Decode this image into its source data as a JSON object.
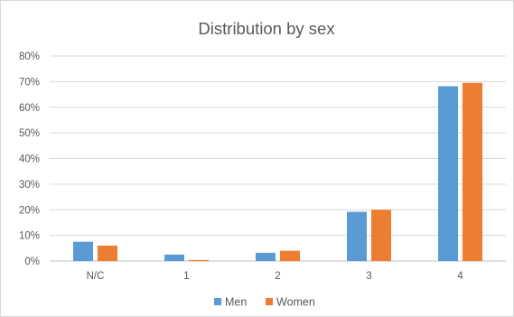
{
  "chart_data": {
    "type": "bar",
    "title": "Distribution by sex",
    "categories": [
      "N/C",
      "1",
      "2",
      "3",
      "4"
    ],
    "series": [
      {
        "name": "Men",
        "color": "#5b9bd5",
        "values": [
          7.5,
          2.5,
          3.2,
          19.2,
          68.2
        ]
      },
      {
        "name": "Women",
        "color": "#ed7d31",
        "values": [
          6.0,
          0.4,
          4.0,
          20.0,
          69.5
        ]
      }
    ],
    "ylim": [
      0,
      80
    ],
    "yticks": [
      "0%",
      "10%",
      "20%",
      "30%",
      "40%",
      "50%",
      "60%",
      "70%",
      "80%"
    ],
    "grid": true,
    "legend_position": "bottom"
  }
}
